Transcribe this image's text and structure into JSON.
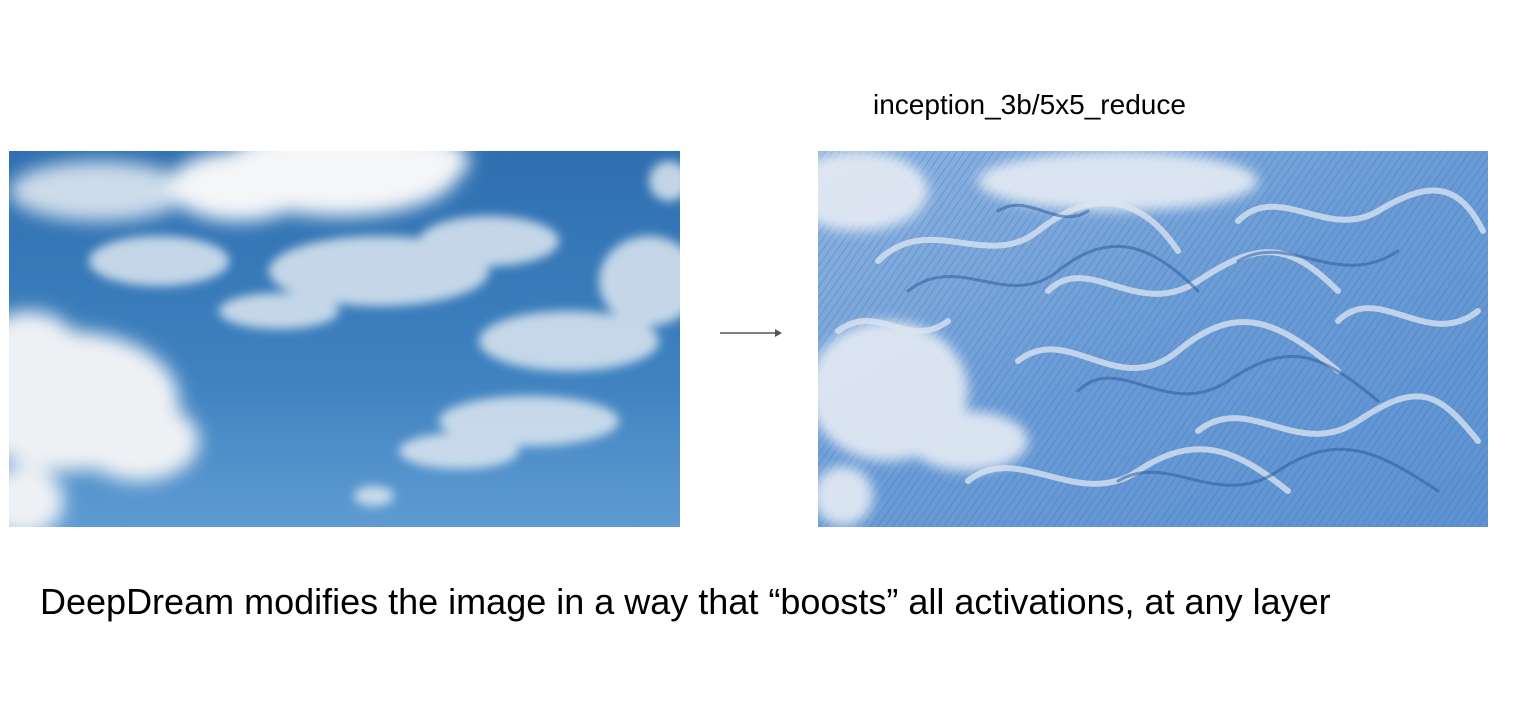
{
  "slide": {
    "layer_label": "inception_3b/5x5_reduce",
    "caption": "DeepDream modifies the image in a way that “boosts” all activations, at any layer"
  },
  "images": {
    "left": {
      "subject": "blue sky with white clouds",
      "sky_color": "#3f82c0",
      "cloud_color": "#f4f6f8"
    },
    "right": {
      "subject": "deepdream-processed sky with swirling patterns",
      "base_color": "#6a9bd6",
      "pattern_color": "#dfe7f2"
    }
  },
  "icons": {
    "arrow": "right-arrow-icon"
  }
}
